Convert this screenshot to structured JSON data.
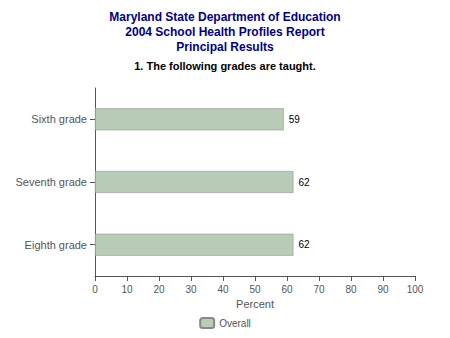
{
  "chart_data": {
    "type": "bar",
    "orientation": "horizontal",
    "title": "Maryland State Department of Education\n2004 School Health Profiles Report\nPrincipal Results",
    "subtitle": "1. The following grades are taught.",
    "categories": [
      "Sixth grade",
      "Seventh grade",
      "Eighth grade"
    ],
    "series": [
      {
        "name": "Overall",
        "color": "#b8ccb8",
        "values": [
          59,
          62,
          62
        ]
      }
    ],
    "xlabel": "Percent",
    "xlim": [
      0,
      100
    ],
    "xticks": [
      0,
      10,
      20,
      30,
      40,
      50,
      60,
      70,
      80,
      90,
      100
    ],
    "data_labels": true,
    "grid": false,
    "legend": "bottom"
  }
}
